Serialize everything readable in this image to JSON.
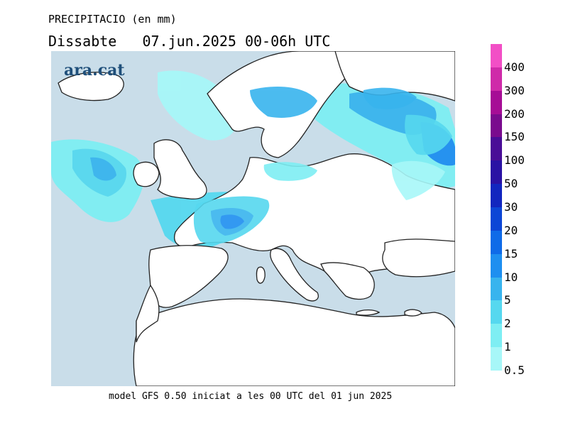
{
  "header": {
    "title": "PRECIPITACIO (en mm)",
    "subtitle": "Dissabte   07.jun.2025 00-06h UTC"
  },
  "logo": {
    "text": "ara.cat"
  },
  "footer": {
    "text": "model GFS 0.50 iniciat a les 00 UTC del 01 jun 2025"
  },
  "map": {
    "colors": {
      "sea": "#c9dde9",
      "land": "#ffffff",
      "coast": "#222222"
    }
  },
  "legend": {
    "items": [
      {
        "label": "0.5",
        "color": "#a7f7f8"
      },
      {
        "label": "1",
        "color": "#7eeef3"
      },
      {
        "label": "2",
        "color": "#56d8ef"
      },
      {
        "label": "5",
        "color": "#38b4ee"
      },
      {
        "label": "10",
        "color": "#1e8ff0"
      },
      {
        "label": "15",
        "color": "#0f6be8"
      },
      {
        "label": "20",
        "color": "#0c46d6"
      },
      {
        "label": "30",
        "color": "#1226bf"
      },
      {
        "label": "50",
        "color": "#2a12a4"
      },
      {
        "label": "100",
        "color": "#4a0d97"
      },
      {
        "label": "150",
        "color": "#7a0b8e"
      },
      {
        "label": "200",
        "color": "#a60d96"
      },
      {
        "label": "300",
        "color": "#cf2aa9"
      },
      {
        "label": "400",
        "color": "#f24fc6"
      }
    ]
  }
}
